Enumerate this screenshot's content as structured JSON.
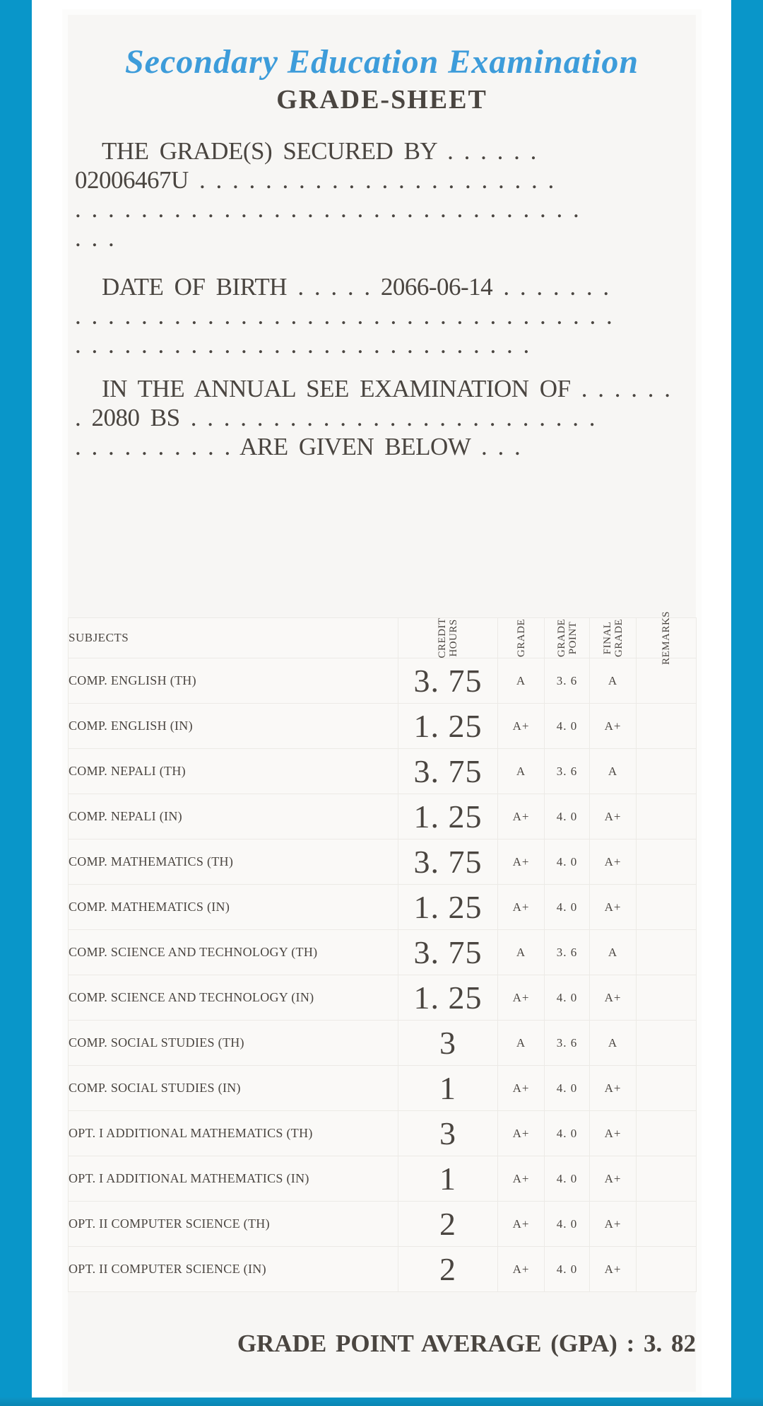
{
  "colors": {
    "border_blue": "#0996c9",
    "bottom_bar_blue": "#0a85b3",
    "title_blue": "#3d9cda",
    "ink": "#4a4540",
    "paper": "#f7f6f4"
  },
  "header": {
    "title": "Secondary Education Examination",
    "subtitle": "GRADE-SHEET"
  },
  "intro": {
    "grades_secured": {
      "lines": [
        "THE GRADE(S) SECURED BY . . . . . .",
        "02006467U . . . . . . . . . . . . . . . . . . . . . .",
        ". . . . . . . . . . . . . . . . . . . . . . . . . . . . . . .",
        ". . ."
      ]
    },
    "date_of_birth": {
      "lines": [
        "DATE OF BIRTH . . . . . 2066-06-14 . . . . . . .",
        ". . . . . . . . . . . . . . . . . . . . . . . . . . . . . . . . .",
        ". . . . . . . . . . . . . . . . . . . . . . . . . . . ."
      ]
    },
    "examination": {
      "lines": [
        "IN THE ANNUAL SEE EXAMINATION OF . . . . . .",
        ". 2080 BS . . . . . . . . . . . . . . . . . . . . . . . . .",
        ". . . . . . . . . . ARE GIVEN BELOW . . ."
      ]
    }
  },
  "table": {
    "headers": {
      "subjects": "SUBJECTS",
      "credit_hours": "CREDIT\nHOURS",
      "grade": "GRADE",
      "grade_point": "GRADE\nPOINT",
      "final_grade": "FINAL\nGRADE",
      "remarks": "REMARKS"
    },
    "rows": [
      {
        "subject": "COMP.  ENGLISH (TH)",
        "credit_hours": "3. 75",
        "grade": "A",
        "grade_point": "3. 6",
        "final_grade": "A",
        "remarks": ""
      },
      {
        "subject": "COMP.  ENGLISH (IN)",
        "credit_hours": "1. 25",
        "grade": "A+",
        "grade_point": "4. 0",
        "final_grade": "A+",
        "remarks": ""
      },
      {
        "subject": "COMP.  NEPALI (TH)",
        "credit_hours": "3. 75",
        "grade": "A",
        "grade_point": "3. 6",
        "final_grade": "A",
        "remarks": ""
      },
      {
        "subject": "COMP.  NEPALI (IN)",
        "credit_hours": "1. 25",
        "grade": "A+",
        "grade_point": "4. 0",
        "final_grade": "A+",
        "remarks": ""
      },
      {
        "subject": "COMP.  MATHEMATICS (TH)",
        "credit_hours": "3. 75",
        "grade": "A+",
        "grade_point": "4. 0",
        "final_grade": "A+",
        "remarks": ""
      },
      {
        "subject": "COMP.  MATHEMATICS (IN)",
        "credit_hours": "1. 25",
        "grade": "A+",
        "grade_point": "4. 0",
        "final_grade": "A+",
        "remarks": ""
      },
      {
        "subject": "COMP.  SCIENCE AND TECHNOLOGY (TH)",
        "credit_hours": "3. 75",
        "grade": "A",
        "grade_point": "3. 6",
        "final_grade": "A",
        "remarks": ""
      },
      {
        "subject": "COMP.  SCIENCE AND TECHNOLOGY (IN)",
        "credit_hours": "1. 25",
        "grade": "A+",
        "grade_point": "4. 0",
        "final_grade": "A+",
        "remarks": ""
      },
      {
        "subject": "COMP.  SOCIAL STUDIES (TH)",
        "credit_hours": "3",
        "grade": "A",
        "grade_point": "3. 6",
        "final_grade": "A",
        "remarks": ""
      },
      {
        "subject": "COMP.  SOCIAL STUDIES (IN)",
        "credit_hours": "1",
        "grade": "A+",
        "grade_point": "4. 0",
        "final_grade": "A+",
        "remarks": ""
      },
      {
        "subject": "OPT. I ADDITIONAL MATHEMATICS (TH)",
        "credit_hours": "3",
        "grade": "A+",
        "grade_point": "4. 0",
        "final_grade": "A+",
        "remarks": ""
      },
      {
        "subject": "OPT. I ADDITIONAL MATHEMATICS (IN)",
        "credit_hours": "1",
        "grade": "A+",
        "grade_point": "4. 0",
        "final_grade": "A+",
        "remarks": ""
      },
      {
        "subject": "OPT. II COMPUTER SCIENCE (TH)",
        "credit_hours": "2",
        "grade": "A+",
        "grade_point": "4. 0",
        "final_grade": "A+",
        "remarks": ""
      },
      {
        "subject": "OPT. II COMPUTER SCIENCE (IN)",
        "credit_hours": "2",
        "grade": "A+",
        "grade_point": "4. 0",
        "final_grade": "A+",
        "remarks": ""
      }
    ]
  },
  "footer": {
    "gpa_text": "GRADE POINT AVERAGE (GPA) : 3. 82"
  }
}
